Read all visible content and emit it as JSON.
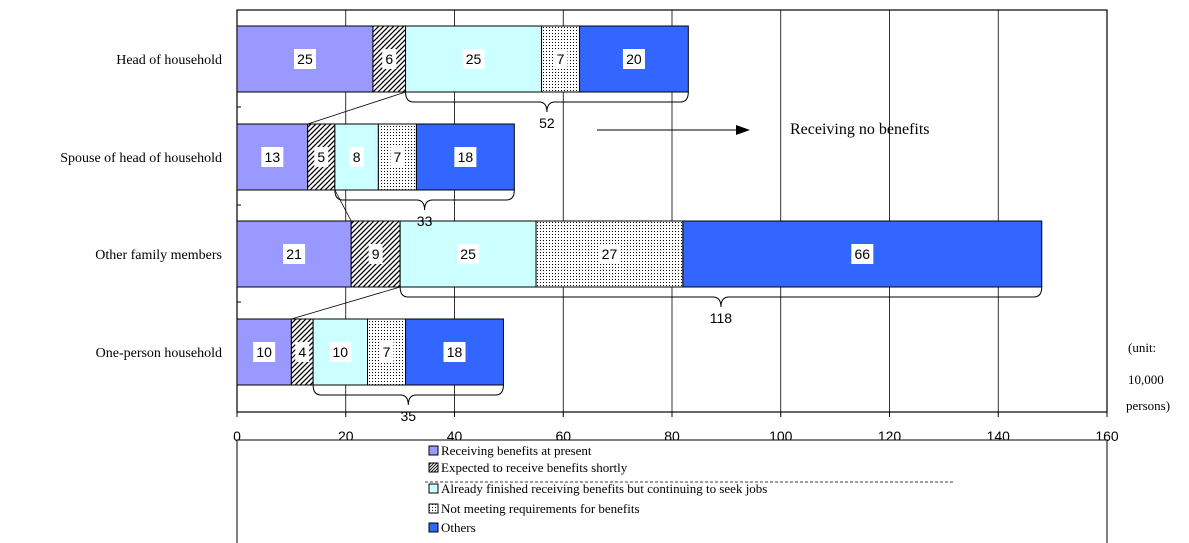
{
  "chart_data": {
    "type": "bar",
    "orientation": "horizontal",
    "stacked": true,
    "categories": [
      "Head of household",
      "Spouse of  head of household",
      "Other family members",
      "One-person household"
    ],
    "series": [
      {
        "name": "Receiving benefits at present",
        "values": [
          25,
          13,
          21,
          10
        ],
        "color": "#9999ff",
        "pattern": "solid"
      },
      {
        "name": "Expected to receive benefits shortly",
        "values": [
          6,
          5,
          9,
          4
        ],
        "color": "#000000",
        "pattern": "diagonal-hatch"
      },
      {
        "name": "Already finished receiving benefits but continuing to seek jobs",
        "values": [
          25,
          8,
          25,
          10
        ],
        "color": "#ccffff",
        "pattern": "solid"
      },
      {
        "name": "Not meeting requirements for benefits",
        "values": [
          7,
          7,
          27,
          7
        ],
        "color": "#000000",
        "pattern": "dots"
      },
      {
        "name": "Others",
        "values": [
          20,
          18,
          66,
          18
        ],
        "color": "#3366ff",
        "pattern": "solid"
      }
    ],
    "xlim": [
      0,
      160
    ],
    "xticks": [
      "0",
      "20",
      "40",
      "60",
      "80",
      "100",
      "120",
      "140",
      "160"
    ],
    "grid": true,
    "legend": "bottom",
    "no_benefit_sums": [
      "52",
      "33",
      "118",
      "35"
    ],
    "annotation": "Receiving no benefits",
    "unit_note": [
      "(unit:",
      "10,000",
      "persons)"
    ]
  }
}
